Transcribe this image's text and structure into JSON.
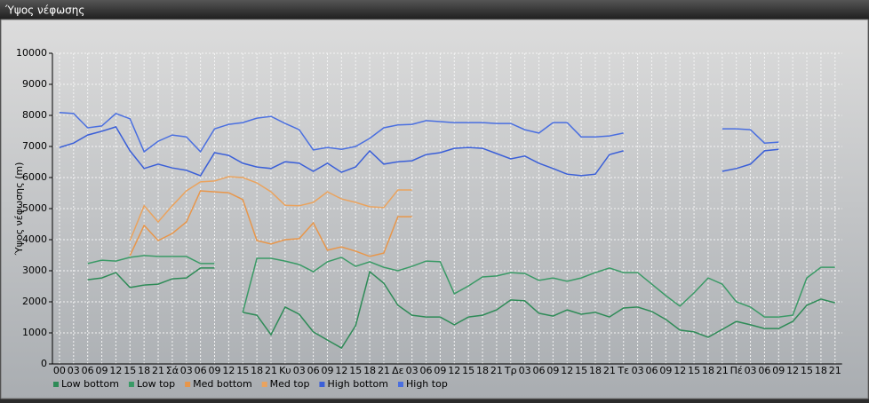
{
  "window_title": "Ύψος νέφωσης",
  "chart_data": {
    "type": "line",
    "y_label": "Ύψος νέφωσης (m)",
    "categories": [
      "00",
      "03",
      "06",
      "09",
      "12",
      "15",
      "18",
      "21",
      "Σά",
      "03",
      "06",
      "09",
      "12",
      "15",
      "18",
      "21",
      "Κυ",
      "03",
      "06",
      "09",
      "12",
      "15",
      "18",
      "21",
      "Δε",
      "03",
      "06",
      "09",
      "12",
      "15",
      "18",
      "21",
      "Τρ",
      "03",
      "06",
      "09",
      "12",
      "15",
      "18",
      "21",
      "Τε",
      "03",
      "06",
      "09",
      "12",
      "15",
      "18",
      "21",
      "Πέ",
      "03",
      "06",
      "09",
      "12",
      "15",
      "18",
      "21"
    ],
    "ylim": [
      0,
      10000
    ],
    "yticks": [
      0,
      1000,
      2000,
      3000,
      4000,
      5000,
      6000,
      7000,
      8000,
      9000,
      10000
    ],
    "grid": true,
    "legend": "bottom",
    "series": [
      {
        "name": "Low bottom",
        "color": "#2e8b57",
        "values": [
          null,
          null,
          2710,
          2770,
          2940,
          2460,
          2540,
          2570,
          2740,
          2770,
          3090,
          3090,
          null,
          1660,
          1570,
          940,
          1830,
          1600,
          1030,
          770,
          510,
          1230,
          2970,
          2600,
          1890,
          1570,
          1510,
          1510,
          1260,
          1510,
          1570,
          1740,
          2060,
          2030,
          1630,
          1540,
          1740,
          1600,
          1660,
          1510,
          1800,
          1830,
          1690,
          1430,
          1090,
          1030,
          860,
          1110,
          1370,
          1260,
          1140,
          1140,
          1370,
          1890,
          2090,
          1970
        ]
      },
      {
        "name": "Low top",
        "color": "#3a9a66",
        "values": [
          null,
          null,
          3230,
          3340,
          3310,
          3430,
          3490,
          3460,
          3460,
          3460,
          3230,
          3230,
          null,
          1660,
          3400,
          3400,
          3310,
          3200,
          2970,
          3290,
          3430,
          3140,
          3290,
          3110,
          3000,
          3140,
          3310,
          3290,
          2260,
          2510,
          2800,
          2830,
          2940,
          2910,
          2690,
          2770,
          2660,
          2770,
          2940,
          3090,
          2940,
          2940,
          2570,
          2200,
          1860,
          2290,
          2770,
          2570,
          2000,
          1830,
          1510,
          1510,
          1570,
          2770,
          3110,
          3110
        ]
      },
      {
        "name": "Med bottom",
        "color": "#e8964a",
        "values": [
          null,
          null,
          null,
          null,
          null,
          3490,
          4460,
          3970,
          4200,
          4570,
          5570,
          5540,
          5510,
          5290,
          3970,
          3860,
          4000,
          4030,
          4540,
          3660,
          3770,
          3630,
          3460,
          3570,
          4740,
          4740,
          null,
          null,
          null,
          null,
          null,
          null,
          null,
          null,
          null,
          null,
          null,
          null,
          null,
          null,
          null,
          null,
          null,
          null,
          null,
          null,
          null,
          null,
          null,
          null,
          null,
          null,
          null,
          null,
          null,
          null
        ]
      },
      {
        "name": "Med top",
        "color": "#eaa35e",
        "values": [
          null,
          null,
          null,
          null,
          null,
          3970,
          5090,
          4570,
          5090,
          5570,
          5860,
          5890,
          6030,
          6000,
          5830,
          5540,
          5110,
          5090,
          5200,
          5540,
          5310,
          5200,
          5060,
          5030,
          5600,
          5600,
          null,
          null,
          null,
          null,
          null,
          null,
          null,
          null,
          null,
          null,
          null,
          null,
          null,
          null,
          null,
          null,
          null,
          null,
          null,
          null,
          null,
          null,
          null,
          null,
          null,
          null,
          null,
          null,
          null,
          null
        ]
      },
      {
        "name": "High bottom",
        "color": "#3a5fd8",
        "values": [
          6970,
          7110,
          7370,
          7490,
          7630,
          6860,
          6290,
          6430,
          6310,
          6230,
          6060,
          6800,
          6710,
          6460,
          6340,
          6290,
          6510,
          6460,
          6200,
          6460,
          6170,
          6340,
          6860,
          6430,
          6510,
          6540,
          6740,
          6800,
          6940,
          6970,
          6940,
          6770,
          6600,
          6690,
          6460,
          6290,
          6110,
          6060,
          6110,
          6740,
          6860,
          null,
          null,
          null,
          null,
          null,
          null,
          6200,
          6290,
          6430,
          6860,
          6910,
          null,
          null,
          null,
          null
        ]
      },
      {
        "name": "High top",
        "color": "#4a6fe0",
        "values": [
          8090,
          8060,
          7600,
          7660,
          8060,
          7890,
          6830,
          7170,
          7370,
          7310,
          6830,
          7570,
          7710,
          7770,
          7910,
          7970,
          7740,
          7540,
          6890,
          6970,
          6910,
          7000,
          7260,
          7600,
          7690,
          7710,
          7830,
          7800,
          7770,
          7770,
          7770,
          7740,
          7740,
          7540,
          7430,
          7770,
          7770,
          7310,
          7310,
          7340,
          7430,
          null,
          null,
          null,
          null,
          null,
          null,
          7570,
          7570,
          7540,
          7110,
          7140,
          null,
          null,
          null,
          null
        ]
      }
    ]
  }
}
